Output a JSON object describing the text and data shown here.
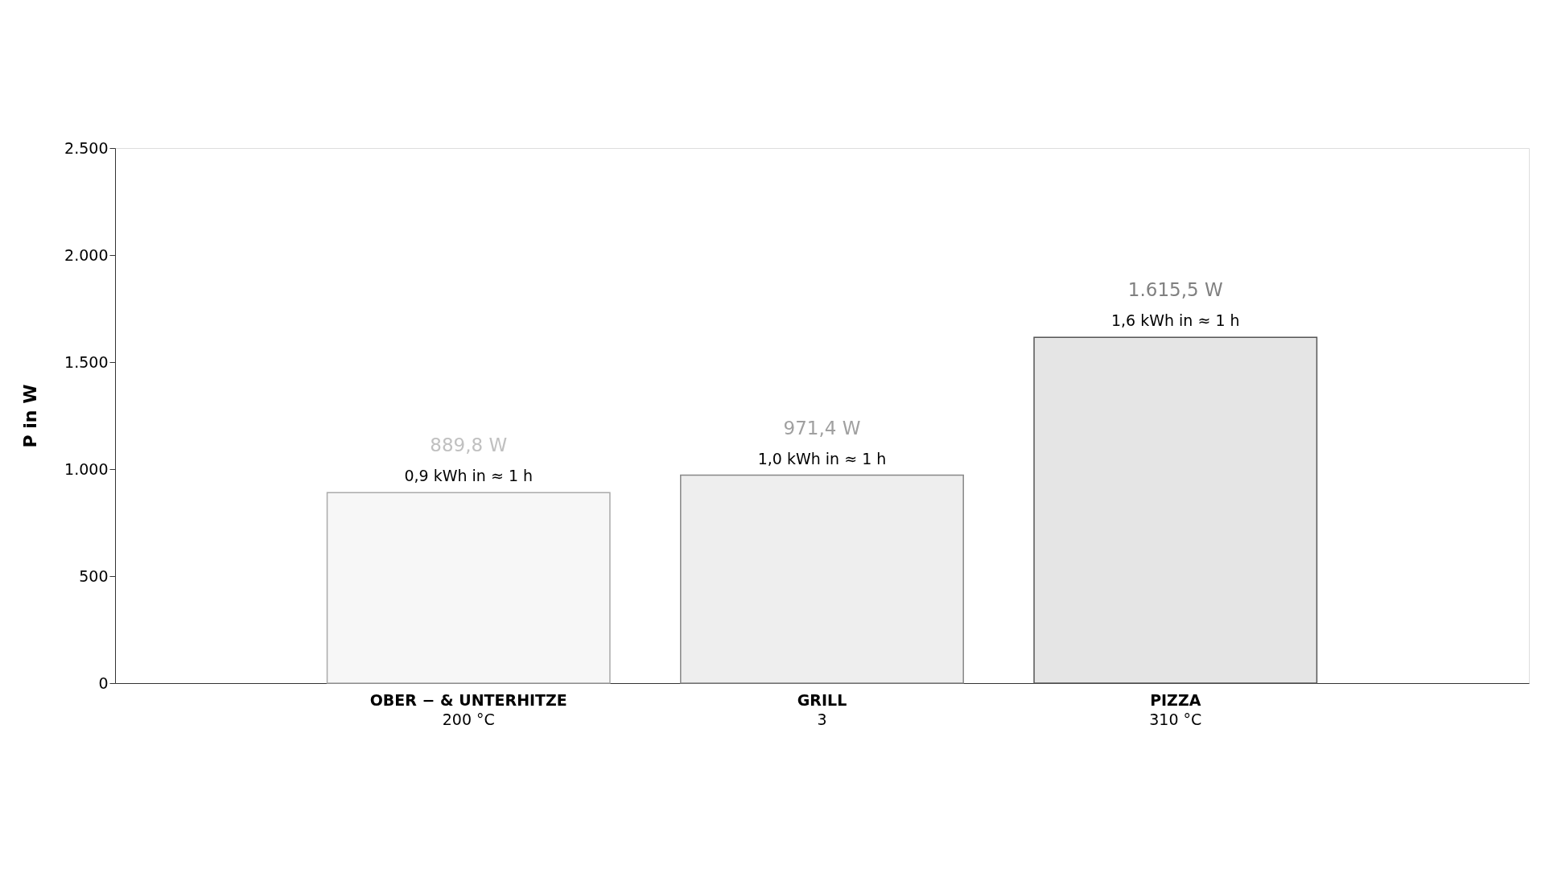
{
  "chart_data": {
    "type": "bar",
    "ylabel": "P in W",
    "categories": [
      "OBER −  & UNTERHITZE",
      "GRILL",
      "PIZZA"
    ],
    "values": [
      889.8,
      971.4,
      1615.5
    ],
    "colors": [
      "#f7f7f7",
      "#eeeeee",
      "#e5e5e5"
    ],
    "value_labels": [
      "889,8 W",
      "971,4 W",
      "1.615,5 W"
    ],
    "annotations": [
      {
        "text": "0,9 kWh in ≈ 1 h",
        "x": "OBER −  & UNTERHITZE",
        "y": 889.8
      },
      {
        "text": "1,0 kWh in ≈ 1 h",
        "x": "GRILL",
        "y": 971.4
      },
      {
        "text": "1,6 kWh in ≈ 1 h",
        "x": "PIZZA",
        "y": 1615.5
      },
      {
        "text": "200 °C",
        "x": "OBER −  & UNTERHITZE",
        "y": 0
      },
      {
        "text": "3",
        "x": "GRILL",
        "y": 0
      },
      {
        "text": "310 °C",
        "x": "PIZZA",
        "y": 0
      }
    ],
    "ylim": [
      0,
      2500
    ],
    "yticks": [
      {
        "value": 0,
        "label": "0"
      },
      {
        "value": 500,
        "label": "500"
      },
      {
        "value": 1000,
        "label": "1.000"
      },
      {
        "value": 1500,
        "label": "1.500"
      },
      {
        "value": 2000,
        "label": "2.000"
      },
      {
        "value": 2500,
        "label": "2.500"
      }
    ],
    "grid": false
  }
}
